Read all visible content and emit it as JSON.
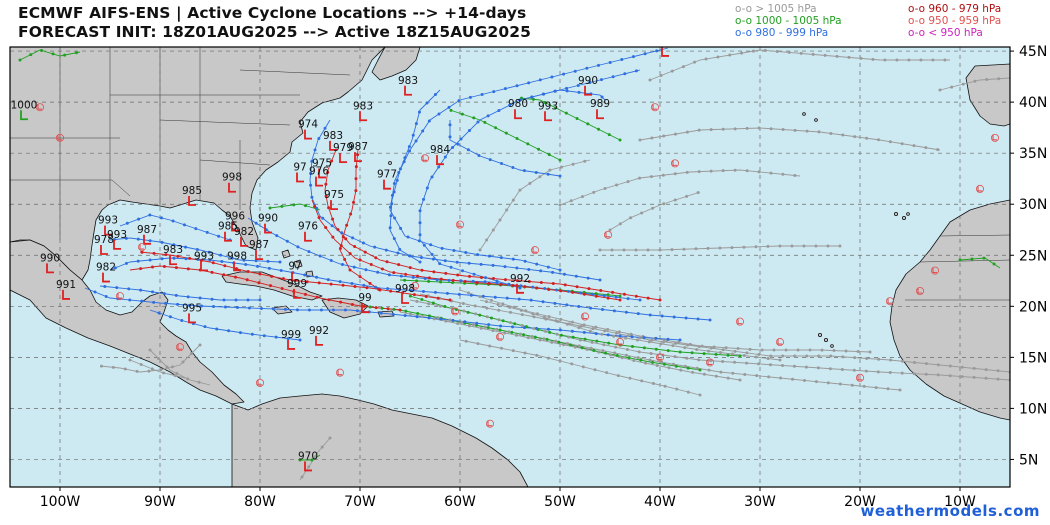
{
  "title_line1": "ECMWF AIFS-ENS | Active Cyclone Locations --> +14-days",
  "title_line2": "FORECAST INIT: 18Z01AUG2025 --> Active 18Z15AUG2025",
  "legend": [
    {
      "label": "o-o > 1005 hPa",
      "color": "#9a9a9a"
    },
    {
      "label": "o-o 1000 - 1005 hPa",
      "color": "#22a022"
    },
    {
      "label": "o-o 980 - 999 hPa",
      "color": "#2f6fe0"
    },
    {
      "label": "o-o 960 - 979 hPa",
      "color": "#b01010"
    },
    {
      "label": "o-o 950 - 959 hPa",
      "color": "#e05050"
    },
    {
      "label": "o-o < 950 hPa",
      "color": "#d020c0"
    }
  ],
  "lon_labels": [
    "100W",
    "90W",
    "80W",
    "70W",
    "60W",
    "50W",
    "40W",
    "30W",
    "20W",
    "10W"
  ],
  "lat_labels": [
    "45N",
    "40N",
    "35N",
    "30N",
    "25N",
    "20N",
    "15N",
    "10N",
    "5N"
  ],
  "pressures": [
    {
      "v": "990",
      "lon": -39.5,
      "lat": 45.6
    },
    {
      "v": "1000",
      "lon": -103.6,
      "lat": 39.4
    },
    {
      "v": "983",
      "lon": -65.2,
      "lat": 41.8
    },
    {
      "v": "990",
      "lon": -47.2,
      "lat": 41.8
    },
    {
      "v": "983",
      "lon": -69.7,
      "lat": 39.3
    },
    {
      "v": "980",
      "lon": -54.2,
      "lat": 39.5
    },
    {
      "v": "993",
      "lon": -51.2,
      "lat": 39.3
    },
    {
      "v": "989",
      "lon": -46.0,
      "lat": 39.5
    },
    {
      "v": "974",
      "lon": -75.2,
      "lat": 37.5
    },
    {
      "v": "983",
      "lon": -72.7,
      "lat": 36.4
    },
    {
      "v": "987",
      "lon": -70.2,
      "lat": 35.3
    },
    {
      "v": "979",
      "lon": -71.7,
      "lat": 35.2
    },
    {
      "v": "984",
      "lon": -62.0,
      "lat": 35.0
    },
    {
      "v": "975",
      "lon": -73.8,
      "lat": 33.7
    },
    {
      "v": "97",
      "lon": -76.0,
      "lat": 33.3
    },
    {
      "v": "976",
      "lon": -74.1,
      "lat": 32.9
    },
    {
      "v": "977",
      "lon": -67.3,
      "lat": 32.6
    },
    {
      "v": "998",
      "lon": -82.8,
      "lat": 32.3
    },
    {
      "v": "985",
      "lon": -86.8,
      "lat": 31.0
    },
    {
      "v": "975",
      "lon": -72.6,
      "lat": 30.6
    },
    {
      "v": "996",
      "lon": -82.5,
      "lat": 28.5
    },
    {
      "v": "990",
      "lon": -79.2,
      "lat": 28.3
    },
    {
      "v": "993",
      "lon": -95.2,
      "lat": 28.1
    },
    {
      "v": "985",
      "lon": -83.2,
      "lat": 27.5
    },
    {
      "v": "976",
      "lon": -75.2,
      "lat": 27.5
    },
    {
      "v": "987",
      "lon": -91.3,
      "lat": 27.2
    },
    {
      "v": "982",
      "lon": -81.6,
      "lat": 27.0
    },
    {
      "v": "993",
      "lon": -94.3,
      "lat": 26.7
    },
    {
      "v": "978",
      "lon": -95.6,
      "lat": 26.2
    },
    {
      "v": "987",
      "lon": -80.1,
      "lat": 25.7
    },
    {
      "v": "983",
      "lon": -88.7,
      "lat": 25.2
    },
    {
      "v": "993",
      "lon": -85.6,
      "lat": 24.6
    },
    {
      "v": "998",
      "lon": -82.3,
      "lat": 24.6
    },
    {
      "v": "990",
      "lon": -101.0,
      "lat": 24.4
    },
    {
      "v": "982",
      "lon": -95.4,
      "lat": 23.5
    },
    {
      "v": "97",
      "lon": -76.5,
      "lat": 23.6
    },
    {
      "v": "992",
      "lon": -54.0,
      "lat": 22.4
    },
    {
      "v": "999",
      "lon": -76.3,
      "lat": 21.9
    },
    {
      "v": "991",
      "lon": -99.4,
      "lat": 21.8
    },
    {
      "v": "998",
      "lon": -65.5,
      "lat": 21.4
    },
    {
      "v": "99",
      "lon": -69.5,
      "lat": 20.5
    },
    {
      "v": "995",
      "lon": -86.8,
      "lat": 19.5
    },
    {
      "v": "992",
      "lon": -74.1,
      "lat": 17.3
    },
    {
      "v": "999",
      "lon": -76.9,
      "lat": 16.9
    },
    {
      "v": "970",
      "lon": -75.2,
      "lat": 5.0
    }
  ],
  "credit": "weathermodels.com"
}
